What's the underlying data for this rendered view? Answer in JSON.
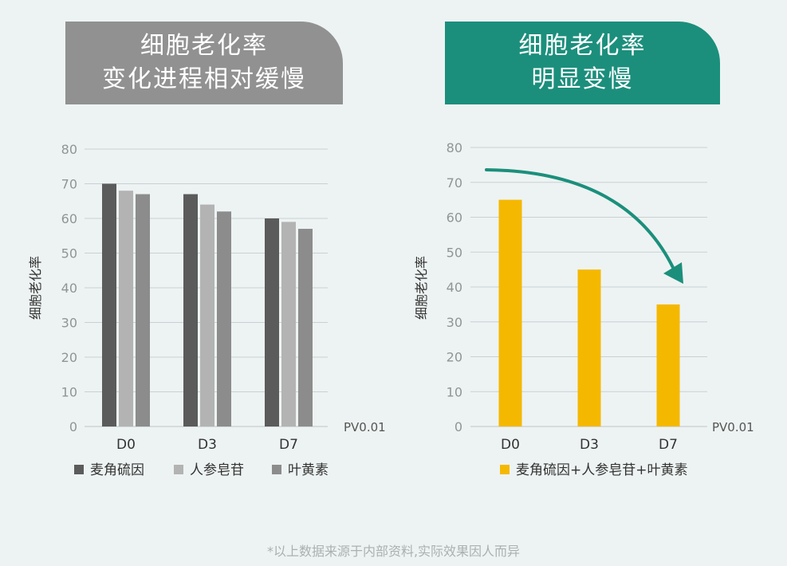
{
  "left_panel": {
    "banner_lines": [
      "细胞老化率",
      "变化进程相对缓慢"
    ],
    "banner_color": "#919191"
  },
  "right_panel": {
    "banner_lines": [
      "细胞老化率",
      "明显变慢"
    ],
    "banner_color": "#1b8f7c"
  },
  "footnote": "*以上数据来源于内部资料,实际效果因人而异",
  "chart_data": [
    {
      "type": "bar",
      "categories": [
        "D0",
        "D3",
        "D7"
      ],
      "series": [
        {
          "name": "麦角硫因",
          "values": [
            70,
            67,
            60
          ],
          "color": "#5b5b5b"
        },
        {
          "name": "人参皂苷",
          "values": [
            68,
            64,
            59
          ],
          "color": "#b3b3b3"
        },
        {
          "name": "叶黄素",
          "values": [
            67,
            62,
            57
          ],
          "color": "#8c8c8c"
        }
      ],
      "ylabel": "细胞老化率",
      "ylim": [
        0,
        80
      ],
      "yticks": [
        0,
        10,
        20,
        30,
        40,
        50,
        60,
        70,
        80
      ],
      "annotation": "PV0.01",
      "grid": true,
      "legend": "bottom"
    },
    {
      "type": "bar",
      "categories": [
        "D0",
        "D3",
        "D7"
      ],
      "series": [
        {
          "name": "麦角硫因+人参皂苷+叶黄素",
          "values": [
            65,
            45,
            35
          ],
          "color": "#f5b800"
        }
      ],
      "ylabel": "细胞老化率",
      "ylim": [
        0,
        80
      ],
      "yticks": [
        0,
        10,
        20,
        30,
        40,
        50,
        60,
        70,
        80
      ],
      "annotation": "PV0.01",
      "grid": true,
      "legend": "bottom",
      "arrow_color": "#1b8f7c"
    }
  ]
}
